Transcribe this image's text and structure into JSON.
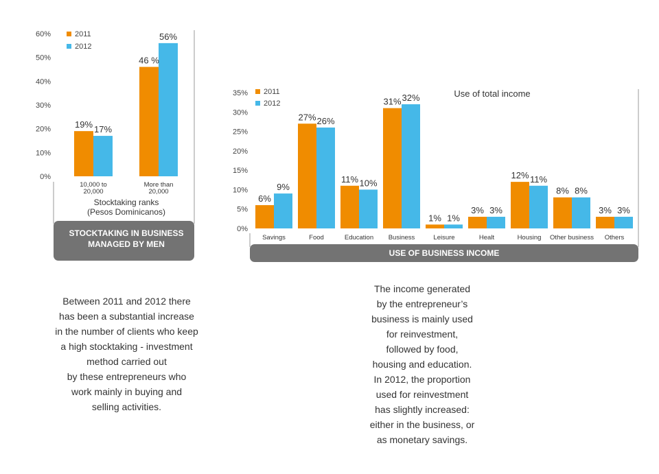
{
  "colors": {
    "y2011": "#f08c00",
    "y2012": "#45b8e8",
    "banner": "#737373",
    "axis": "#777777"
  },
  "chart_data": [
    {
      "type": "bar",
      "title": "STOCKTAKING IN BUSINESS MANAGED BY MEN",
      "xlabel": "Stocktaking ranks (Pesos Dominicanos)",
      "xlabel_lines": [
        "Stocktaking ranks",
        "(Pesos Dominicanos)"
      ],
      "ylabel": "",
      "ylim": [
        0,
        60
      ],
      "yticks": [
        "0%",
        "10%",
        "20%",
        "30%",
        "40%",
        "50%",
        "60%"
      ],
      "categories": [
        "10,000 to 20,000",
        "More than 20,000"
      ],
      "category_lines": [
        [
          "10,000 to",
          "20,000"
        ],
        [
          "More than",
          "20,000"
        ]
      ],
      "legend": "top-left",
      "series": [
        {
          "name": "2011",
          "values": [
            19,
            46
          ],
          "labels": [
            "19%",
            "46 %"
          ]
        },
        {
          "name": "2012",
          "values": [
            17,
            56
          ],
          "labels": [
            "17%",
            "56%"
          ]
        }
      ]
    },
    {
      "type": "bar",
      "title": "USE OF BUSINESS INCOME",
      "subtitle": "Use of total income",
      "xlabel": "",
      "ylabel": "",
      "ylim": [
        0,
        35
      ],
      "yticks": [
        "0%",
        "5%",
        "10%",
        "15%",
        "20%",
        "25%",
        "30%",
        "35%"
      ],
      "categories": [
        "Savings",
        "Food",
        "Education",
        "Business",
        "Leisure",
        "Healt",
        "Housing",
        "Other business",
        "Others"
      ],
      "legend": "top-left",
      "series": [
        {
          "name": "2011",
          "values": [
            6,
            27,
            11,
            31,
            1,
            3,
            12,
            8,
            3
          ],
          "labels": [
            "6%",
            "27%",
            "11%",
            "31%",
            "1%",
            "3%",
            "12%",
            "8%",
            "3%"
          ]
        },
        {
          "name": "2012",
          "values": [
            9,
            26,
            10,
            32,
            1,
            3,
            11,
            8,
            3
          ],
          "labels": [
            "9%",
            "26%",
            "10%",
            "32%",
            "1%",
            "3%",
            "11%",
            "8%",
            "3%"
          ]
        }
      ]
    }
  ],
  "notes": {
    "left": [
      "Between 2011 and 2012 there",
      "has been a substantial increase",
      "in the number of clients who keep",
      "a high stocktaking - investment",
      "method carried out",
      "by these entrepreneurs who",
      "work mainly in buying and",
      "selling activities."
    ],
    "right": [
      "The income generated",
      "by the entrepreneur’s",
      "business is mainly used",
      "for reinvestment,",
      "followed by food,",
      "housing and education.",
      "In 2012, the proportion",
      "used for reinvestment",
      "has slightly increased:",
      "either in the business, or",
      "as monetary savings."
    ]
  },
  "banners": {
    "left": [
      "STOCKTAKING IN BUSINESS",
      "MANAGED BY MEN"
    ],
    "right": "USE OF BUSINESS INCOME"
  }
}
